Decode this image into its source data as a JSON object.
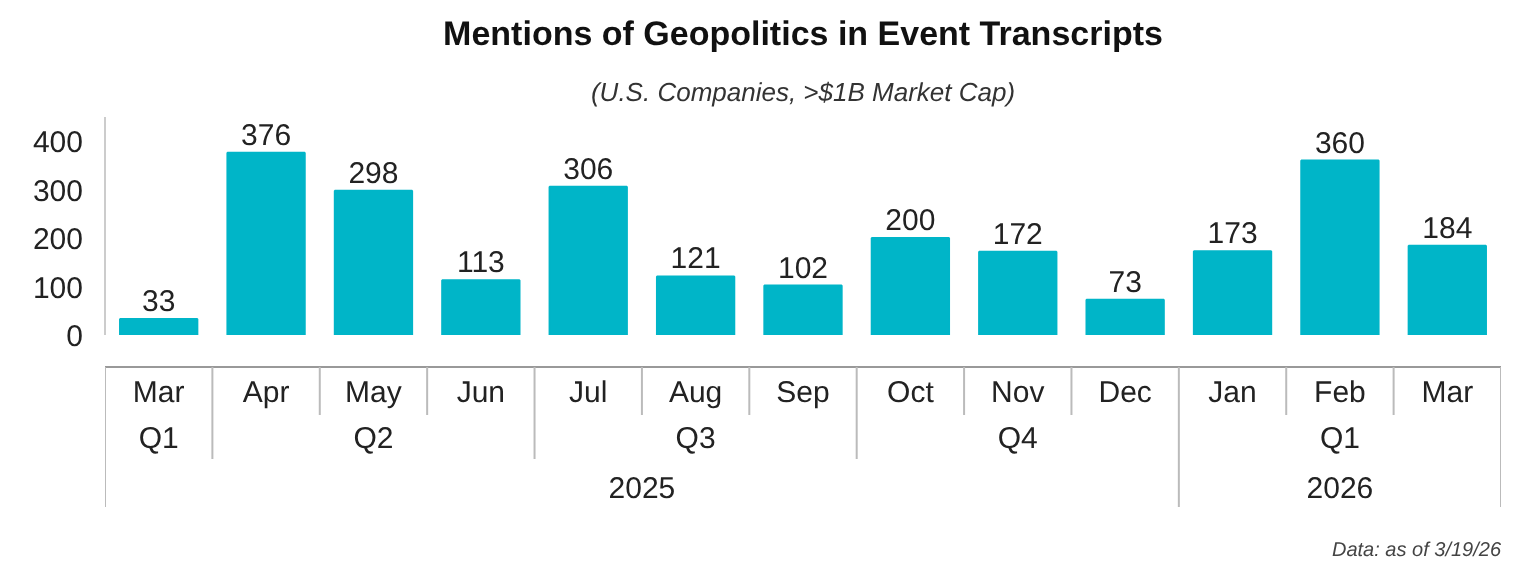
{
  "chart_data": {
    "type": "bar",
    "title": "Mentions of Geopolitics in Event Transcripts",
    "subtitle": "(U.S. Companies, >$1B Market Cap)",
    "categories": [
      "Mar",
      "Apr",
      "May",
      "Jun",
      "Jul",
      "Aug",
      "Sep",
      "Oct",
      "Nov",
      "Dec",
      "Jan",
      "Feb",
      "Mar"
    ],
    "values": [
      33,
      376,
      298,
      113,
      306,
      121,
      102,
      200,
      172,
      73,
      173,
      360,
      184
    ],
    "color": "#00b5c8",
    "ylim": [
      0,
      450
    ],
    "yticks": [
      0,
      100,
      200,
      300,
      400
    ],
    "grid": false,
    "data_labels": true,
    "annotations": [
      "Q1",
      "Q2",
      "Q3",
      "Q4",
      "Q1",
      "2025",
      "2026",
      "Data: as of 3/19/26"
    ]
  }
}
